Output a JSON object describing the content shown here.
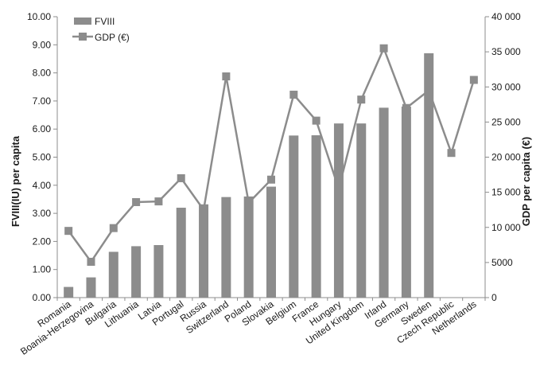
{
  "chart_data": {
    "type": "bar",
    "categories": [
      "Romania",
      "Boania-Herzegovina",
      "Bulgaria",
      "Lithuania",
      "Latvia",
      "Portugal",
      "Russia",
      "Switzerland",
      "Poland",
      "Slovakia",
      "Belgium",
      "France",
      "Hungary",
      "United Kingdom",
      "Irland",
      "Germany",
      "Sweden",
      "Czech Republic",
      "Netherlands"
    ],
    "series": [
      {
        "name": "FVIII",
        "kind": "bar",
        "axis": "left",
        "color": "#8c8c8c",
        "values": [
          0.38,
          0.72,
          1.63,
          1.83,
          1.87,
          3.2,
          3.32,
          3.58,
          3.6,
          3.95,
          5.77,
          5.78,
          6.2,
          6.2,
          6.76,
          6.8,
          8.7,
          null,
          null
        ]
      },
      {
        "name": "GDP (€)",
        "kind": "line",
        "axis": "right",
        "color": "#8c8c8c",
        "values": [
          9500,
          5100,
          9900,
          13600,
          13700,
          17000,
          12500,
          31500,
          13500,
          16800,
          28900,
          25200,
          15500,
          28200,
          35500,
          27000,
          29500,
          20600,
          31000
        ]
      }
    ],
    "ylabel": "FVIII(IU)  per capita",
    "y2label": "GDP  per capita (€)",
    "ylim": [
      0,
      10
    ],
    "y2lim": [
      0,
      40000
    ],
    "yticks": [
      "0.00",
      "1.00",
      "2.00",
      "3.00",
      "4.00",
      "5.00",
      "6.00",
      "7.00",
      "8.00",
      "9.00",
      "10.00"
    ],
    "y2ticks": [
      "0",
      "5000",
      "10 000",
      "15 000",
      "20 000",
      "25 000",
      "30 000",
      "35 000",
      "40 000"
    ],
    "grid": false,
    "legend": "top-left"
  }
}
